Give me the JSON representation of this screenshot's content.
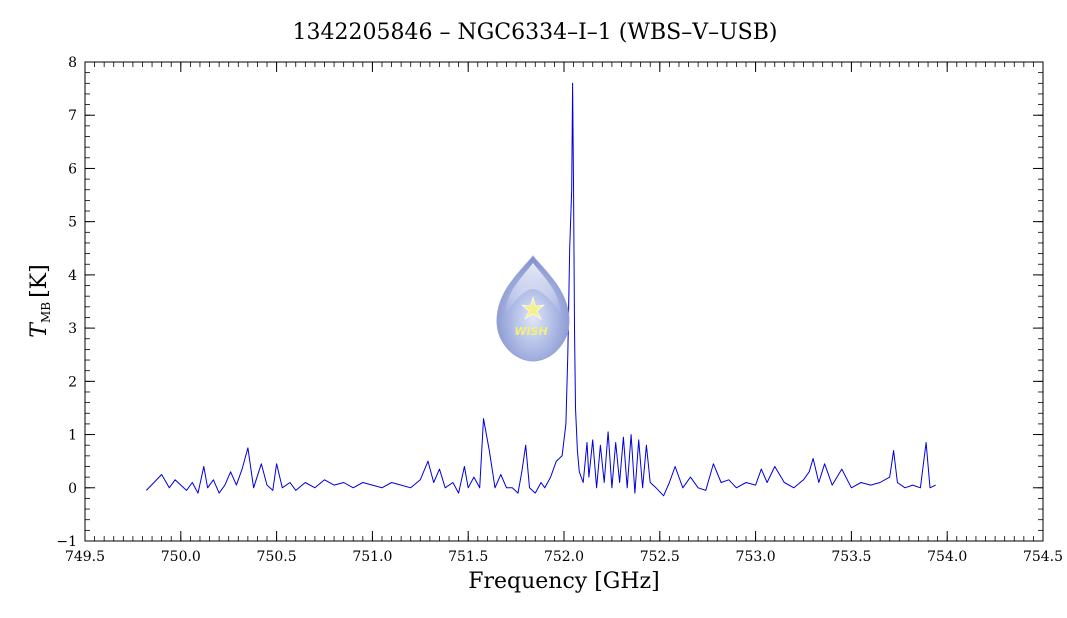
{
  "chart_data": {
    "type": "line",
    "title": "1342205846 – NGC6334–I–1 (WBS–V–USB)",
    "xlabel": "Frequency [GHz]",
    "ylabel_main": "T",
    "ylabel_sub": "MB",
    "ylabel_unit": "[K]",
    "xlim": [
      749.5,
      754.5
    ],
    "ylim": [
      -1,
      8
    ],
    "x_ticks": [
      749.5,
      750.0,
      750.5,
      751.0,
      751.5,
      752.0,
      752.5,
      753.0,
      753.5,
      754.0,
      754.5
    ],
    "x_tick_labels": [
      "749.5",
      "750.0",
      "750.5",
      "751.0",
      "751.5",
      "752.0",
      "752.5",
      "753.0",
      "753.5",
      "754.0",
      "754.5"
    ],
    "y_ticks": [
      -1,
      0,
      1,
      2,
      3,
      4,
      5,
      6,
      7,
      8
    ],
    "y_tick_labels": [
      "−1",
      "0",
      "1",
      "2",
      "3",
      "4",
      "5",
      "6",
      "7",
      "8"
    ],
    "grid": false,
    "line_color": "#0000dd",
    "logo_text": "WISH",
    "series": [
      {
        "x": [
          749.82,
          749.86,
          749.9,
          749.94,
          749.97,
          750.0,
          750.03,
          750.06,
          750.09,
          750.12,
          750.14,
          750.17,
          750.2,
          750.23,
          750.26,
          750.29,
          750.32,
          750.35,
          750.38,
          750.42,
          750.45,
          750.48,
          750.5,
          750.53,
          750.57,
          750.6,
          750.65,
          750.7,
          750.75,
          750.8,
          750.85,
          750.9,
          750.95,
          751.0,
          751.05,
          751.1,
          751.15,
          751.2,
          751.25,
          751.29,
          751.32,
          751.35,
          751.38,
          751.42,
          751.45,
          751.48,
          751.5,
          751.53,
          751.56,
          751.58,
          751.61,
          751.64,
          751.67,
          751.7,
          751.73,
          751.76,
          751.78,
          751.8,
          751.82,
          751.85,
          751.88,
          751.9,
          751.93,
          751.96,
          751.99,
          752.01,
          752.02,
          752.03,
          752.04,
          752.045,
          752.05,
          752.055,
          752.06,
          752.07,
          752.08,
          752.1,
          752.12,
          752.13,
          752.15,
          752.17,
          752.19,
          752.21,
          752.23,
          752.25,
          752.27,
          752.29,
          752.31,
          752.33,
          752.35,
          752.37,
          752.39,
          752.41,
          752.43,
          752.45,
          752.48,
          752.52,
          752.55,
          752.58,
          752.62,
          752.66,
          752.7,
          752.74,
          752.78,
          752.82,
          752.86,
          752.9,
          752.95,
          753.0,
          753.03,
          753.06,
          753.1,
          753.15,
          753.2,
          753.25,
          753.28,
          753.3,
          753.33,
          753.36,
          753.4,
          753.45,
          753.5,
          753.55,
          753.6,
          753.65,
          753.7,
          753.72,
          753.74,
          753.78,
          753.82,
          753.86,
          753.89,
          753.91,
          753.94
        ],
        "y": [
          -0.05,
          0.1,
          0.25,
          0.0,
          0.15,
          0.05,
          -0.05,
          0.1,
          -0.1,
          0.4,
          0.0,
          0.15,
          -0.1,
          0.05,
          0.3,
          0.05,
          0.35,
          0.75,
          0.0,
          0.45,
          0.05,
          -0.05,
          0.45,
          0.0,
          0.1,
          -0.05,
          0.1,
          0.0,
          0.15,
          0.05,
          0.1,
          0.0,
          0.1,
          0.05,
          0.0,
          0.1,
          0.05,
          0.0,
          0.15,
          0.5,
          0.1,
          0.35,
          0.0,
          0.1,
          -0.1,
          0.4,
          0.0,
          0.2,
          0.0,
          1.3,
          0.7,
          0.0,
          0.25,
          0.0,
          0.0,
          -0.1,
          0.3,
          0.8,
          0.0,
          -0.1,
          0.1,
          0.0,
          0.2,
          0.5,
          0.6,
          1.2,
          2.5,
          4.5,
          5.6,
          7.6,
          5.5,
          3.0,
          1.5,
          0.7,
          0.3,
          0.1,
          0.85,
          0.2,
          0.9,
          0.0,
          0.8,
          0.1,
          1.05,
          0.0,
          0.85,
          0.1,
          0.95,
          0.0,
          1.0,
          -0.1,
          0.9,
          0.0,
          0.8,
          0.1,
          0.0,
          -0.15,
          0.1,
          0.4,
          0.0,
          0.2,
          0.0,
          -0.05,
          0.45,
          0.1,
          0.15,
          0.0,
          0.1,
          0.05,
          0.35,
          0.1,
          0.4,
          0.1,
          0.0,
          0.15,
          0.3,
          0.55,
          0.1,
          0.45,
          0.05,
          0.35,
          0.0,
          0.1,
          0.05,
          0.1,
          0.2,
          0.7,
          0.1,
          0.0,
          0.05,
          0.0,
          0.85,
          0.0,
          0.05
        ]
      }
    ]
  }
}
